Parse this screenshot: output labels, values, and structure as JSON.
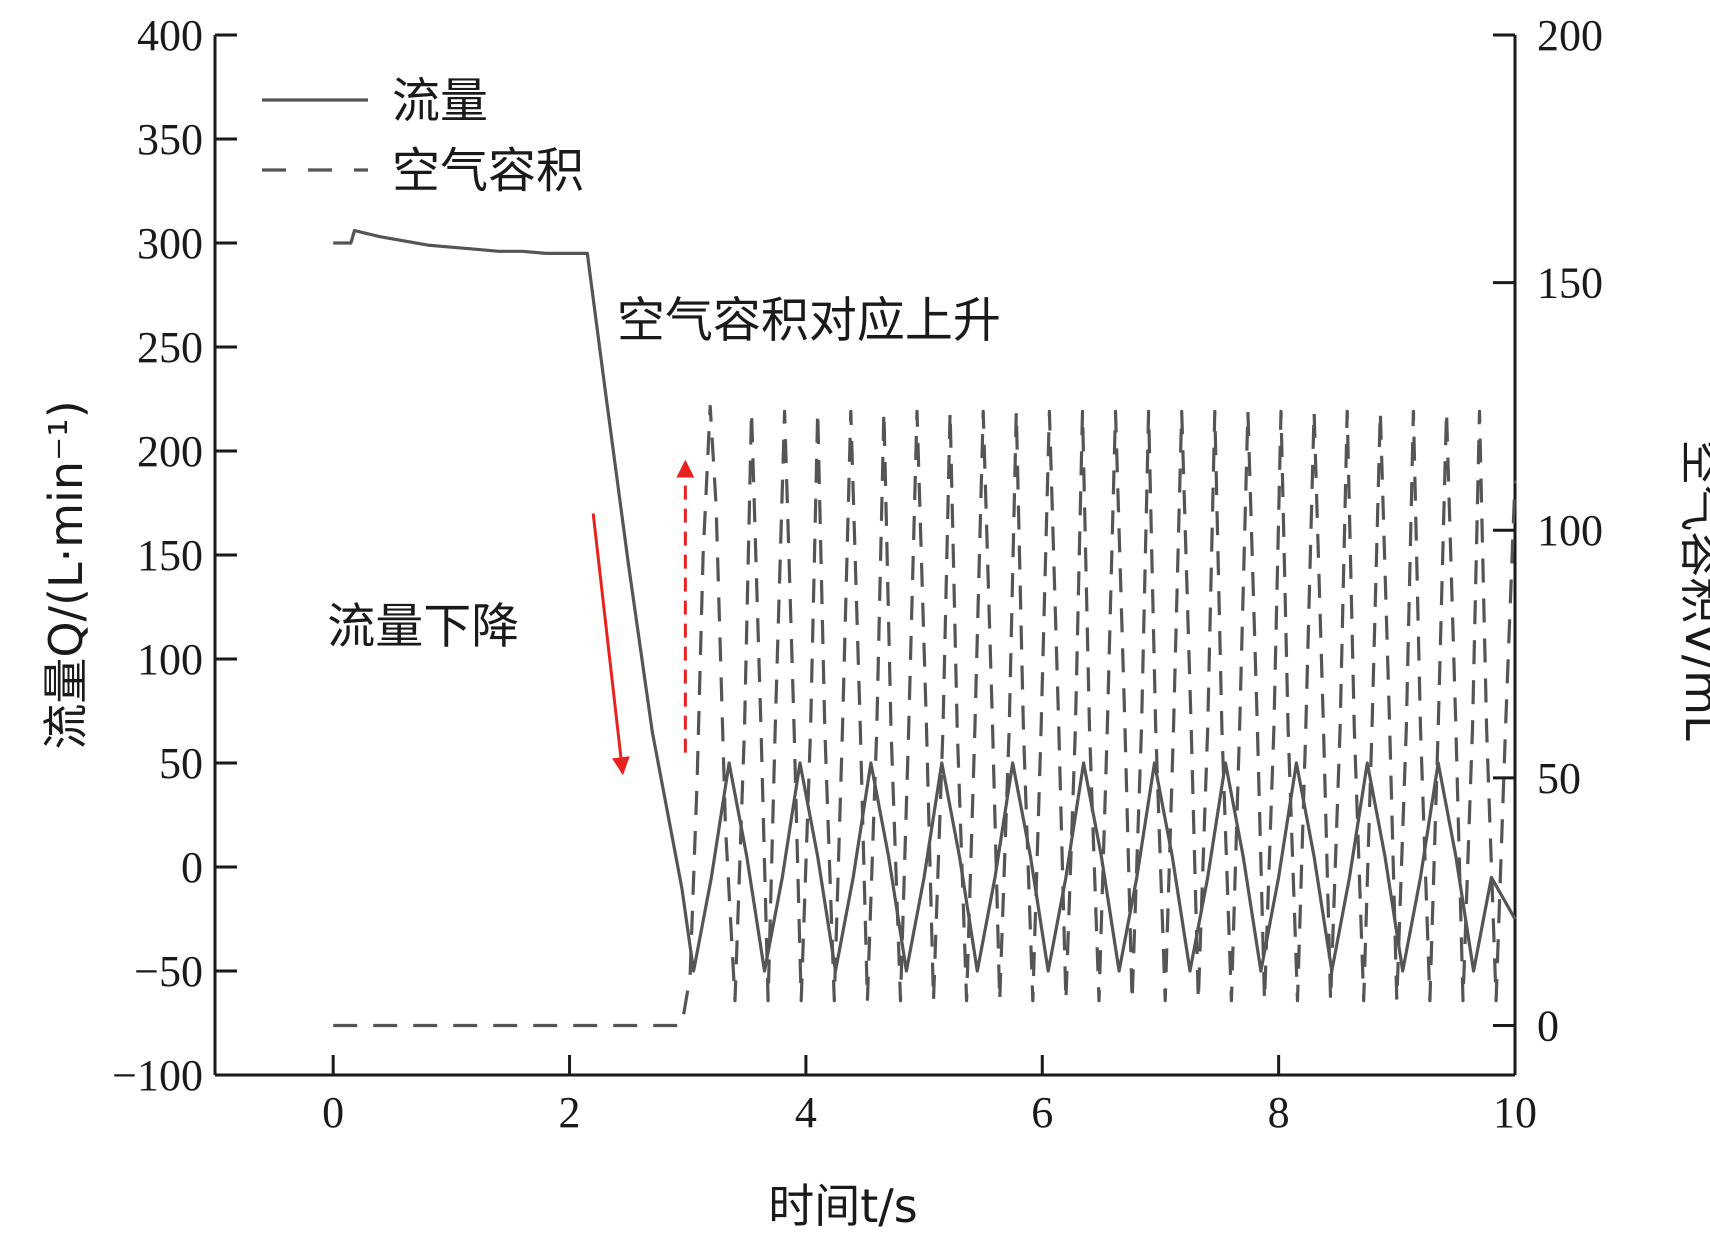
{
  "chart_data": {
    "type": "line",
    "xlabel": "时间t/s",
    "ylabel_left": "流量Q/(L·min⁻¹)",
    "ylabel_right": "空气容积V/mL",
    "xlim": [
      -1,
      10
    ],
    "ylim_left": [
      -100,
      400
    ],
    "ylim_right": [
      -10,
      200
    ],
    "x_ticks": [
      0,
      2,
      4,
      6,
      8,
      10
    ],
    "y_left_ticks": [
      -100,
      -50,
      0,
      50,
      100,
      150,
      200,
      250,
      300,
      350,
      400
    ],
    "y_right_ticks": [
      0,
      50,
      100,
      150,
      200
    ],
    "grid": false,
    "legend_position": "top-left",
    "colors": {
      "flow": "#555555",
      "air": "#555555",
      "arrow": "#e8231f",
      "axis": "#1a1a1a"
    },
    "series": [
      {
        "name": "流量",
        "axis": "left",
        "style": "solid",
        "x": [
          0,
          0.15,
          0.18,
          0.25,
          0.4,
          0.6,
          0.8,
          1.0,
          1.2,
          1.4,
          1.6,
          1.8,
          2.0,
          2.15,
          2.3,
          2.5,
          2.7,
          2.95,
          3.05,
          3.2,
          3.35,
          3.5,
          3.65,
          3.8,
          3.95,
          4.1,
          4.25,
          4.4,
          4.55,
          4.7,
          4.85,
          5.0,
          5.15,
          5.3,
          5.45,
          5.6,
          5.75,
          5.9,
          6.05,
          6.2,
          6.35,
          6.5,
          6.65,
          6.8,
          6.95,
          7.1,
          7.25,
          7.4,
          7.55,
          7.7,
          7.85,
          8.0,
          8.15,
          8.3,
          8.45,
          8.6,
          8.75,
          8.9,
          9.05,
          9.2,
          9.35,
          9.5,
          9.65,
          9.8,
          10.0
        ],
        "y": [
          300,
          300,
          306,
          305,
          303,
          301,
          299,
          298,
          297,
          296,
          296,
          295,
          295,
          295,
          230,
          145,
          65,
          -10,
          -50,
          -5,
          50,
          5,
          -50,
          -5,
          50,
          5,
          -50,
          -5,
          50,
          5,
          -50,
          -5,
          50,
          5,
          -50,
          -5,
          50,
          5,
          -50,
          -5,
          50,
          5,
          -50,
          -5,
          50,
          5,
          -50,
          -5,
          50,
          5,
          -50,
          -5,
          50,
          5,
          -50,
          -5,
          50,
          5,
          -50,
          -5,
          50,
          5,
          -50,
          -5,
          -25
        ]
      },
      {
        "name": "空气容积",
        "axis": "right",
        "style": "dashed",
        "x": [
          0,
          2.95,
          3.02,
          3.08,
          3.13,
          3.19,
          3.24,
          3.32,
          3.4,
          3.48,
          3.54,
          3.62,
          3.68,
          3.74,
          3.82,
          3.9,
          3.96,
          4.04,
          4.1,
          4.16,
          4.24,
          4.31,
          4.38,
          4.46,
          4.52,
          4.6,
          4.66,
          4.72,
          4.8,
          4.87,
          4.94,
          5.02,
          5.08,
          5.16,
          5.22,
          5.28,
          5.36,
          5.43,
          5.5,
          5.58,
          5.64,
          5.72,
          5.78,
          5.84,
          5.92,
          5.99,
          6.06,
          6.14,
          6.2,
          6.28,
          6.34,
          6.4,
          6.48,
          6.55,
          6.62,
          6.7,
          6.76,
          6.84,
          6.9,
          6.96,
          7.04,
          7.11,
          7.18,
          7.26,
          7.32,
          7.4,
          7.46,
          7.52,
          7.6,
          7.67,
          7.74,
          7.82,
          7.88,
          7.96,
          8.02,
          8.08,
          8.16,
          8.23,
          8.3,
          8.38,
          8.44,
          8.52,
          8.58,
          8.64,
          8.72,
          8.79,
          8.86,
          8.94,
          9.0,
          9.08,
          9.14,
          9.2,
          9.28,
          9.35,
          9.42,
          9.5,
          9.56,
          9.64,
          9.7,
          9.76,
          9.84,
          9.92,
          10.0
        ],
        "y": [
          0,
          0,
          10,
          50,
          95,
          125,
          105,
          40,
          5,
          60,
          124,
          60,
          5,
          60,
          124,
          60,
          5,
          60,
          124,
          60,
          5,
          60,
          124,
          60,
          5,
          60,
          124,
          60,
          5,
          60,
          124,
          60,
          5,
          60,
          124,
          60,
          5,
          60,
          124,
          60,
          5,
          60,
          124,
          60,
          5,
          60,
          124,
          60,
          5,
          60,
          124,
          60,
          5,
          60,
          124,
          60,
          5,
          60,
          124,
          60,
          5,
          60,
          124,
          60,
          5,
          60,
          124,
          60,
          5,
          60,
          124,
          60,
          5,
          60,
          124,
          60,
          5,
          60,
          124,
          60,
          5,
          60,
          124,
          60,
          5,
          60,
          124,
          60,
          5,
          60,
          124,
          60,
          5,
          60,
          124,
          60,
          5,
          60,
          124,
          60,
          5,
          60,
          110
        ]
      }
    ],
    "annotations": [
      {
        "text": "空气容积对应上升",
        "x": 2.4,
        "y_left": 255
      },
      {
        "text": "流量下降",
        "x": -0.05,
        "y_left": 108
      }
    ],
    "arrows": [
      {
        "label": "flow-down-arrow",
        "from": [
          2.2,
          170
        ],
        "to": [
          2.45,
          45
        ],
        "style": "solid"
      },
      {
        "label": "air-up-arrow",
        "from": [
          2.98,
          55
        ],
        "to": [
          2.98,
          195
        ],
        "style": "dashed"
      }
    ]
  }
}
